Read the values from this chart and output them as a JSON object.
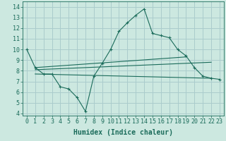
{
  "xlabel": "Humidex (Indice chaleur)",
  "background_color": "#cce8e0",
  "grid_color": "#aacccc",
  "line_color": "#1a6b5a",
  "xlim": [
    -0.5,
    23.5
  ],
  "ylim": [
    3.8,
    14.5
  ],
  "yticks": [
    4,
    5,
    6,
    7,
    8,
    9,
    10,
    11,
    12,
    13,
    14
  ],
  "xticks": [
    0,
    1,
    2,
    3,
    4,
    5,
    6,
    7,
    8,
    9,
    10,
    11,
    12,
    13,
    14,
    15,
    16,
    17,
    18,
    19,
    20,
    21,
    22,
    23
  ],
  "line1_x": [
    0,
    1,
    2,
    3,
    4,
    5,
    6,
    7,
    8,
    9,
    10,
    11,
    12,
    13,
    14,
    15,
    16,
    17,
    18,
    19,
    20,
    21,
    22,
    23
  ],
  "line1_y": [
    10.0,
    8.3,
    7.7,
    7.7,
    6.5,
    6.3,
    5.5,
    4.2,
    7.5,
    8.7,
    10.0,
    11.7,
    12.5,
    13.2,
    13.8,
    11.5,
    11.3,
    11.1,
    10.0,
    9.4,
    8.3,
    7.5,
    7.3,
    7.2
  ],
  "line2_x": [
    1,
    19
  ],
  "line2_y": [
    8.3,
    9.3
  ],
  "line3_x": [
    1,
    22
  ],
  "line3_y": [
    8.1,
    8.8
  ],
  "line4_x": [
    1,
    22
  ],
  "line4_y": [
    7.7,
    7.3
  ],
  "font_size": 6.0,
  "xlabel_fontsize": 7.0
}
